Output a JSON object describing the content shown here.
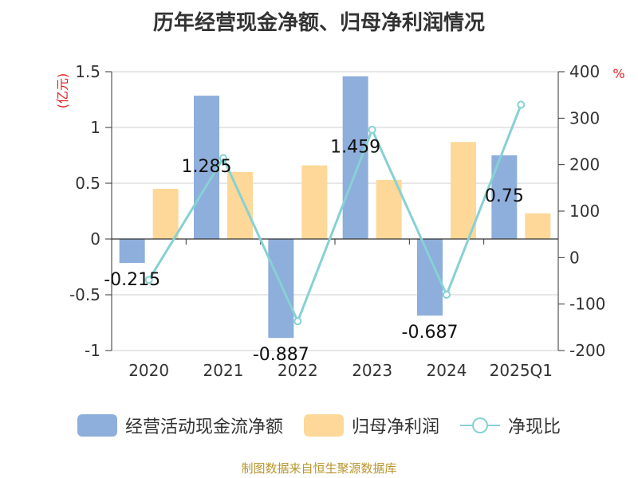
{
  "chart_data": {
    "type": "bar",
    "title": "历年经营现金净额、归母净利润情况",
    "categories": [
      "2020",
      "2021",
      "2022",
      "2023",
      "2024",
      "2025Q1"
    ],
    "series": [
      {
        "name": "经营活动现金流净额",
        "type": "bar",
        "axis": "left",
        "color": "#8eaedb",
        "values": [
          -0.215,
          1.285,
          -0.887,
          1.459,
          -0.687,
          0.75
        ],
        "labels": [
          "-0.215",
          "1.285",
          "-0.887",
          "1.459",
          "-0.687",
          "0.75"
        ]
      },
      {
        "name": "归母净利润",
        "type": "bar",
        "axis": "left",
        "color": "#fdd898",
        "values": [
          0.45,
          0.6,
          0.66,
          0.53,
          0.87,
          0.23
        ]
      },
      {
        "name": "净现比",
        "type": "line",
        "axis": "right",
        "color": "#86d1d4",
        "values": [
          -48,
          214,
          -137,
          275,
          -80,
          329
        ]
      }
    ],
    "y_left": {
      "label": "(亿元)",
      "min": -1,
      "max": 1.5,
      "ticks": [
        1.5,
        1,
        0.5,
        0,
        -0.5,
        -1
      ],
      "tick_labels": [
        "1.5",
        "1",
        "0.5",
        "0",
        "-0.5",
        "-1"
      ]
    },
    "y_right": {
      "label": "%",
      "min": -200,
      "max": 400,
      "ticks": [
        400,
        300,
        200,
        100,
        0,
        -100,
        -200
      ],
      "tick_labels": [
        "400",
        "300",
        "200",
        "100",
        "0",
        "-100",
        "-200"
      ]
    },
    "grid": true,
    "legend_position": "bottom"
  },
  "source": "制图数据来自恒生聚源数据库"
}
